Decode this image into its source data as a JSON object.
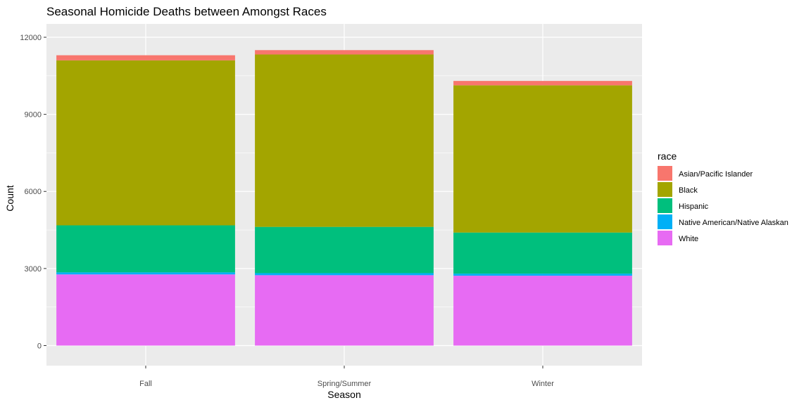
{
  "chart_data": {
    "type": "bar",
    "stacked": true,
    "title": "Seasonal Homicide Deaths between Amongst Races",
    "xlabel": "Season",
    "ylabel": "Count",
    "ylim": [
      0,
      12000
    ],
    "yticks": [
      0,
      3000,
      6000,
      9000,
      12000
    ],
    "grid": true,
    "legend_position": "right",
    "legend_title": "race",
    "categories": [
      "Fall",
      "Spring/Summer",
      "Winter"
    ],
    "series": [
      {
        "name": "Asian/Pacific Islander",
        "color": "#F8766D",
        "values": [
          200,
          170,
          170
        ]
      },
      {
        "name": "Black",
        "color": "#A3A500",
        "values": [
          6420,
          6710,
          5730
        ]
      },
      {
        "name": "Hispanic",
        "color": "#00BF7D",
        "values": [
          1830,
          1800,
          1600
        ]
      },
      {
        "name": "Native American/Native Alaskan",
        "color": "#00B0F6",
        "values": [
          80,
          80,
          80
        ]
      },
      {
        "name": "White",
        "color": "#E76BF3",
        "values": [
          2770,
          2740,
          2720
        ]
      }
    ]
  }
}
